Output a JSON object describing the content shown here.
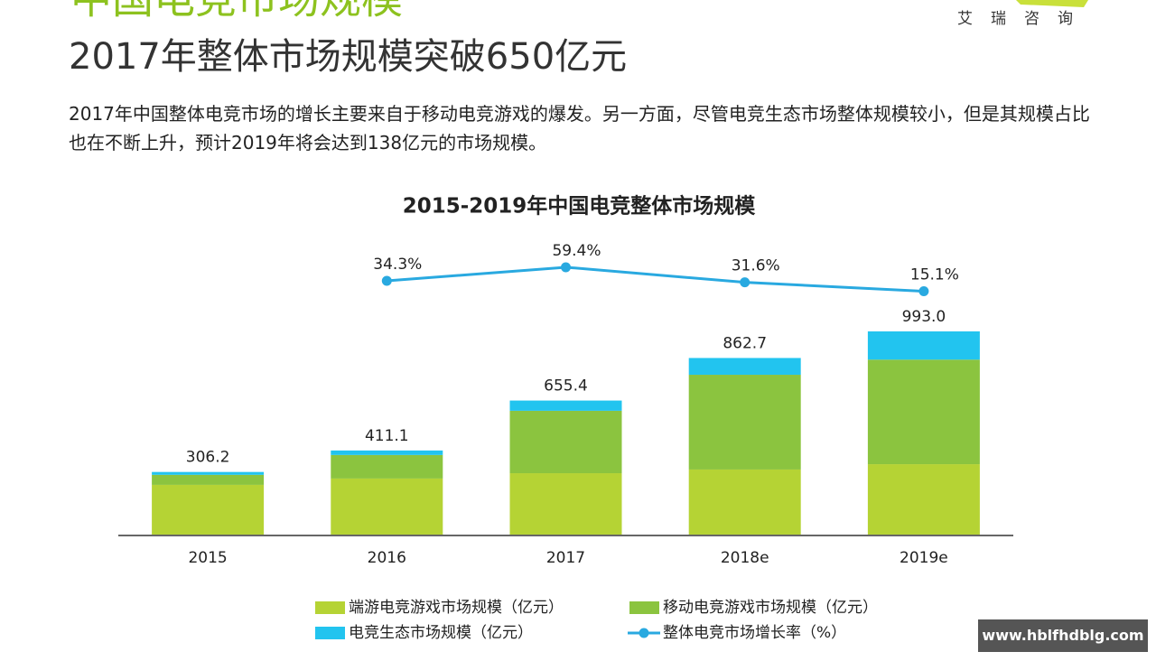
{
  "header": {
    "section_title": "中国电竞市场规模",
    "logo": "艾瑞咨询",
    "headline": "2017年整体市场规模突破650亿元",
    "paragraph": "2017年中国整体电竞市场的增长主要来自于移动电竞游戏的爆发。另一方面，尽管电竞生态市场整体规模较小，但是其规模占比也在不断上升，预计2019年将会达到138亿元的市场规模。"
  },
  "watermark": "www.hblfhdblg.com",
  "chart_data": {
    "type": "bar",
    "stacked": true,
    "title": "2015-2019年中国电竞整体市场规模",
    "categories": [
      "2015",
      "2016",
      "2017",
      "2018e",
      "2019e"
    ],
    "ylim": [
      0,
      1000
    ],
    "y2lim": [
      0,
      100
    ],
    "series": [
      {
        "name": "端游电竞游戏市场规模（亿元）",
        "color": "#b5d334",
        "values": [
          243,
          274,
          300,
          318,
          344
        ]
      },
      {
        "name": "移动电竞游戏市场规模（亿元）",
        "color": "#8bc43f",
        "values": [
          49,
          115,
          305,
          463,
          511
        ]
      },
      {
        "name": "电竞生态市场规模（亿元）",
        "color": "#22c4ef",
        "values": [
          14,
          22,
          50,
          82,
          138
        ]
      },
      {
        "name": "整体电竞市场增长率（%）",
        "color": "#29a9e0",
        "type": "line",
        "axis": "y2",
        "values": [
          null,
          34.3,
          59.4,
          31.6,
          15.1
        ],
        "value_labels": [
          null,
          "34.3%",
          "59.4%",
          "31.6%",
          "15.1%"
        ]
      }
    ],
    "totals": [
      306.2,
      411.1,
      655.4,
      862.7,
      993.0
    ],
    "total_labels": [
      "306.2",
      "411.1",
      "655.4",
      "862.7",
      "993.0"
    ]
  }
}
